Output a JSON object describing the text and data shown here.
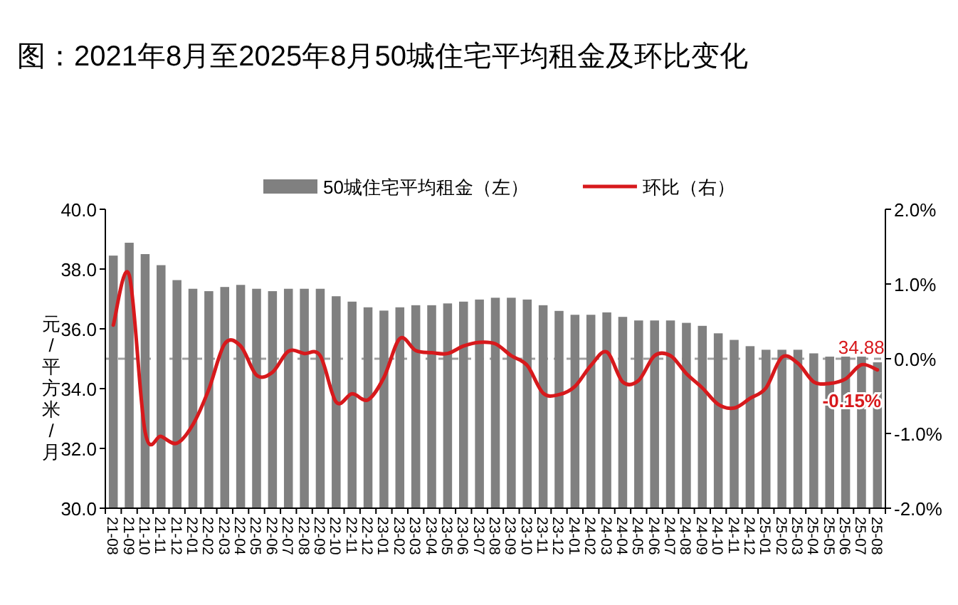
{
  "chart_data": {
    "type": "bar",
    "title": "图：2021年8月至2025年8月50城住宅平均租金及环比变化",
    "ylabel": "元/平方米/月",
    "categories": [
      "21-08",
      "21-09",
      "21-10",
      "21-11",
      "21-12",
      "22-01",
      "22-02",
      "22-03",
      "22-04",
      "22-05",
      "22-06",
      "22-07",
      "22-08",
      "22-09",
      "22-10",
      "22-11",
      "22-12",
      "23-01",
      "23-02",
      "23-03",
      "23-04",
      "23-05",
      "23-06",
      "23-07",
      "23-08",
      "23-09",
      "23-10",
      "23-11",
      "23-12",
      "24-01",
      "24-02",
      "24-03",
      "24-04",
      "24-05",
      "24-06",
      "24-07",
      "24-08",
      "24-09",
      "24-10",
      "24-11",
      "24-12",
      "25-01",
      "25-02",
      "25-03",
      "25-04",
      "25-05",
      "25-06",
      "25-07",
      "25-08"
    ],
    "series": [
      {
        "name": "50城住宅平均租金（左）",
        "color": "#808080",
        "values": [
          38.45,
          38.88,
          38.5,
          38.13,
          37.63,
          37.34,
          37.26,
          37.4,
          37.47,
          37.34,
          37.26,
          37.34,
          37.34,
          37.34,
          37.09,
          36.91,
          36.72,
          36.61,
          36.72,
          36.79,
          36.79,
          36.85,
          36.91,
          36.98,
          37.04,
          37.04,
          36.98,
          36.79,
          36.6,
          36.47,
          36.47,
          36.55,
          36.4,
          36.28,
          36.28,
          36.28,
          36.2,
          36.1,
          35.85,
          35.63,
          35.42,
          35.3,
          35.3,
          35.3,
          35.18,
          35.07,
          35.07,
          35.07,
          34.88
        ],
        "value_labels": [
          null,
          null,
          null,
          null,
          null,
          null,
          null,
          null,
          null,
          null,
          null,
          null,
          null,
          null,
          null,
          null,
          null,
          null,
          null,
          null,
          null,
          null,
          null,
          null,
          null,
          null,
          null,
          null,
          null,
          null,
          null,
          null,
          null,
          null,
          null,
          null,
          null,
          null,
          null,
          null,
          null,
          null,
          null,
          null,
          null,
          null,
          null,
          null,
          "34.88"
        ]
      },
      {
        "name": "环比（右）",
        "type": "line",
        "axis": "y2",
        "color": "#d7191c",
        "values": [
          0.45,
          1.12,
          -0.98,
          -1.04,
          -1.13,
          -0.88,
          -0.41,
          0.2,
          0.17,
          -0.22,
          -0.18,
          0.1,
          0.07,
          0.04,
          -0.58,
          -0.47,
          -0.55,
          -0.25,
          0.27,
          0.11,
          0.08,
          0.07,
          0.17,
          0.22,
          0.2,
          0.04,
          -0.09,
          -0.46,
          -0.48,
          -0.37,
          -0.09,
          0.09,
          -0.31,
          -0.29,
          0.04,
          0.04,
          -0.2,
          -0.39,
          -0.61,
          -0.66,
          -0.53,
          -0.39,
          0.02,
          -0.06,
          -0.31,
          -0.33,
          -0.27,
          -0.08,
          -0.15
        ],
        "value_labels": [
          null,
          null,
          null,
          null,
          null,
          null,
          null,
          null,
          null,
          null,
          null,
          null,
          null,
          null,
          null,
          null,
          null,
          null,
          null,
          null,
          null,
          null,
          null,
          null,
          null,
          null,
          null,
          null,
          null,
          null,
          null,
          null,
          null,
          null,
          null,
          null,
          null,
          null,
          null,
          null,
          null,
          null,
          null,
          null,
          null,
          null,
          null,
          null,
          "-0.15%"
        ]
      }
    ],
    "ylim": [
      30,
      40
    ],
    "yticks": [
      {
        "value": 30,
        "label": "30.0"
      },
      {
        "value": 32,
        "label": "32.0"
      },
      {
        "value": 34,
        "label": "34.0"
      },
      {
        "value": 36,
        "label": "36.0"
      },
      {
        "value": 38,
        "label": "38.0"
      },
      {
        "value": 40,
        "label": "40.0"
      }
    ],
    "y2lim": [
      -2,
      2
    ],
    "y2ticks": [
      {
        "value": -2,
        "label": "-2.0%"
      },
      {
        "value": -1,
        "label": "-1.0%"
      },
      {
        "value": 0,
        "label": "0.0%"
      },
      {
        "value": 1,
        "label": "1.0%"
      },
      {
        "value": 2,
        "label": "2.0%"
      }
    ],
    "ref_lines": [
      {
        "axis": "y2",
        "value": 0,
        "color": "#a0a0a0",
        "line_style": "dashed"
      }
    ],
    "legend": "top",
    "grid": false,
    "marker": "none",
    "line_style": "solid"
  }
}
